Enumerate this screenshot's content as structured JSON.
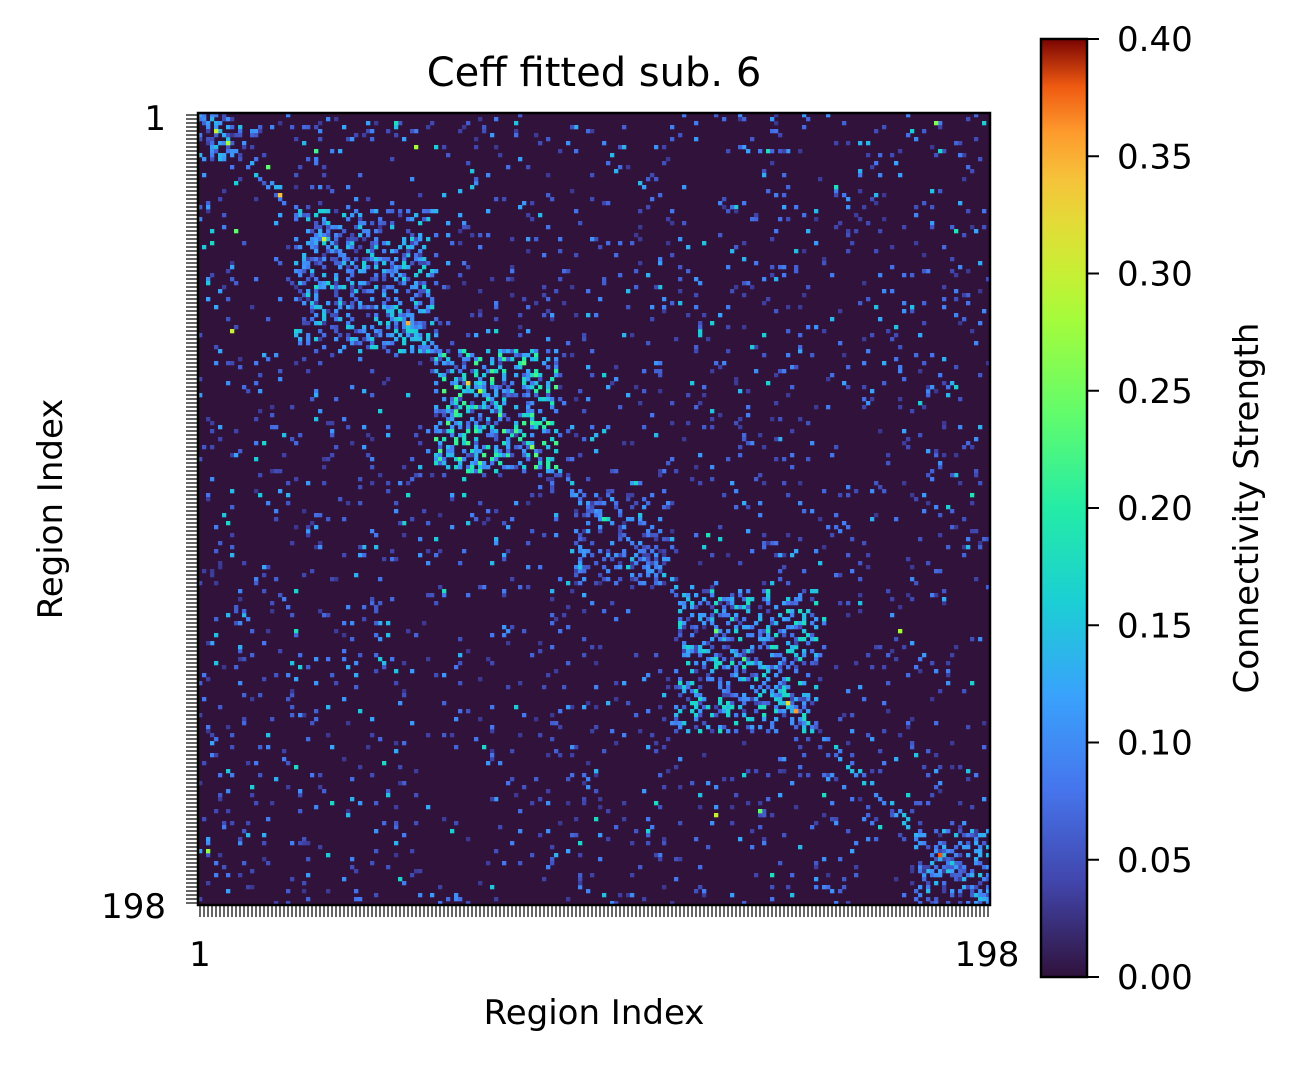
{
  "chart_data": {
    "type": "heatmap",
    "title": "Ceff fitted sub. 6",
    "xlabel": "Region Index",
    "ylabel": "Region Index",
    "n_regions": 198,
    "x_tick_labels": [
      "1",
      "198"
    ],
    "y_tick_labels": [
      "1",
      "198"
    ],
    "colormap": "turbo",
    "grid": false,
    "colorbar": {
      "label": "Connectivity Strength",
      "range": [
        0.0,
        0.4
      ],
      "ticks": [
        0.0,
        0.05,
        0.1,
        0.15,
        0.2,
        0.25,
        0.3,
        0.35,
        0.4
      ],
      "tick_labels": [
        "0.00",
        "0.05",
        "0.10",
        "0.15",
        "0.20",
        "0.25",
        "0.30",
        "0.35",
        "0.40"
      ]
    },
    "background_value": 0.0,
    "block_structure": [
      {
        "from": 1,
        "to": 12,
        "mean_value": 0.09,
        "density": 0.3
      },
      {
        "from": 25,
        "to": 60,
        "mean_value": 0.1,
        "density": 0.3
      },
      {
        "from": 60,
        "to": 90,
        "mean_value": 0.14,
        "density": 0.35
      },
      {
        "from": 95,
        "to": 118,
        "mean_value": 0.07,
        "density": 0.25
      },
      {
        "from": 120,
        "to": 155,
        "mean_value": 0.11,
        "density": 0.3
      },
      {
        "from": 180,
        "to": 198,
        "mean_value": 0.09,
        "density": 0.3
      }
    ],
    "strong_cells": [
      [
        5,
        5,
        0.3
      ],
      [
        8,
        8,
        0.28
      ],
      [
        21,
        21,
        0.34
      ],
      [
        32,
        32,
        0.3
      ],
      [
        53,
        53,
        0.35
      ],
      [
        68,
        68,
        0.33
      ],
      [
        70,
        71,
        0.28
      ],
      [
        80,
        80,
        0.22
      ],
      [
        84,
        84,
        0.26
      ],
      [
        102,
        102,
        0.2
      ],
      [
        130,
        130,
        0.24
      ],
      [
        137,
        137,
        0.22
      ],
      [
        148,
        148,
        0.32
      ],
      [
        150,
        150,
        0.36
      ],
      [
        186,
        186,
        0.38
      ],
      [
        3,
        185,
        0.26
      ],
      [
        185,
        3,
        0.27
      ],
      [
        14,
        18,
        0.24
      ],
      [
        55,
        9,
        0.3
      ],
      [
        9,
        55,
        0.28
      ],
      [
        30,
        10,
        0.24
      ],
      [
        10,
        30,
        0.22
      ],
      [
        176,
        130,
        0.3
      ],
      [
        130,
        176,
        0.28
      ],
      [
        175,
        141,
        0.24
      ]
    ]
  }
}
